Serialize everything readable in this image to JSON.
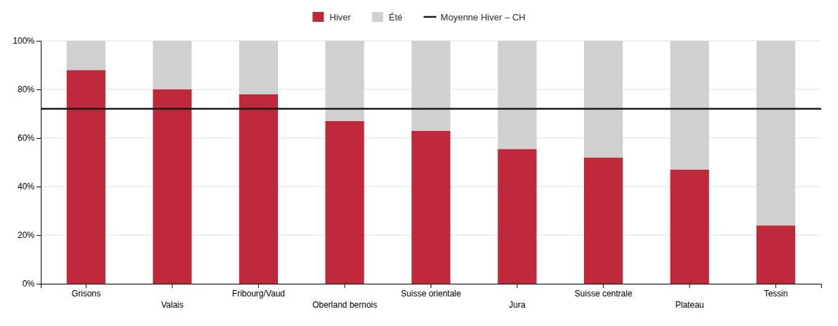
{
  "chart_data": {
    "type": "bar",
    "stacked": true,
    "grid": true,
    "legend": "top",
    "categories": [
      "Grisons",
      "Valais",
      "Fribourg/Vaud",
      "Oberland bernois",
      "Suisse orientale",
      "Jura",
      "Suisse centrale",
      "Plateau",
      "Tessin"
    ],
    "series": [
      {
        "name": "Hiver",
        "color": "#c0283c",
        "values": [
          0.88,
          0.8,
          0.78,
          0.67,
          0.63,
          0.555,
          0.52,
          0.47,
          0.24
        ]
      },
      {
        "name": "Été",
        "color": "#d0d0d0",
        "values": [
          0.12,
          0.2,
          0.22,
          0.33,
          0.37,
          0.445,
          0.48,
          0.53,
          0.76
        ]
      }
    ],
    "reference_line": {
      "name": "Moyenne Hiver – CH",
      "value": 0.72,
      "color": "#1a1a1a"
    },
    "ylim": [
      0,
      1.0
    ],
    "yticks": [
      {
        "value": 0,
        "label": "0%"
      },
      {
        "value": 0.2,
        "label": "20%"
      },
      {
        "value": 0.4,
        "label": "40%"
      },
      {
        "value": 0.6,
        "label": "60%"
      },
      {
        "value": 0.8,
        "label": "80%"
      },
      {
        "value": 1.0,
        "label": "100%"
      }
    ]
  }
}
